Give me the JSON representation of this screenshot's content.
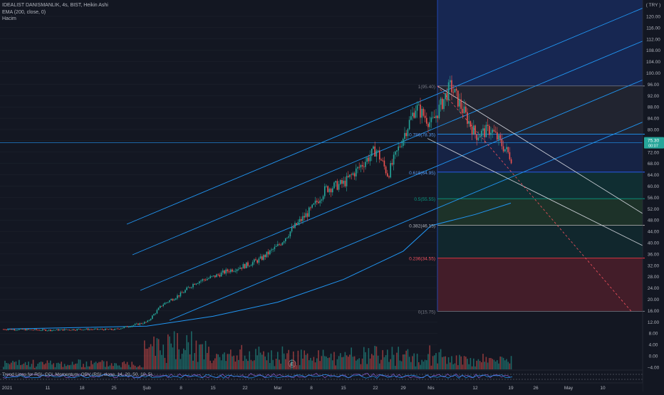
{
  "header": {
    "symbol_line": "IDEALIST DANISMANLIK, 4s, BIST, Heikin Ashi",
    "ema_line": "EMA (200, close, 0)",
    "volume_line": "Hacim",
    "currency": "( TRY )"
  },
  "oscillator": {
    "label": "Trend Lines for RSI, CCI, Momentum, OBV (RSI, close, 14, 20, 50, 10, 5)"
  },
  "price_badge": {
    "value": "75.30",
    "sub": "00:07"
  },
  "marker_e": "E",
  "fib_levels": [
    {
      "label": "1(95.40)",
      "value": 95.4
    },
    {
      "label": "0.786(78.35)",
      "value": 78.35
    },
    {
      "label": "0.618(64.95)",
      "value": 64.95
    },
    {
      "label": "0.5(55.55)",
      "value": 55.55
    },
    {
      "label": "0.382(46.15)",
      "value": 46.15
    },
    {
      "label": "0.236(34.55)",
      "value": 34.55
    },
    {
      "label": "0(15.75)",
      "value": 15.75
    }
  ],
  "colors": {
    "background": "#131722",
    "up": "#26a69a",
    "down": "#ef5350",
    "ema": "#2196f3",
    "channel": "#2196f3",
    "fib_red": "#f7525f",
    "fib_blue": "#5b9cf6"
  },
  "chart_data": {
    "type": "candlestick",
    "style": "Heikin Ashi",
    "y_axis": {
      "side": "right",
      "range": [
        -4,
        124
      ],
      "ticks": [
        "120.00",
        "116.00",
        "112.00",
        "108.00",
        "104.00",
        "100.00",
        "96.00",
        "92.00",
        "88.00",
        "84.00",
        "80.00",
        "76.00",
        "72.00",
        "68.00",
        "64.00",
        "60.00",
        "56.00",
        "52.00",
        "48.00",
        "44.00",
        "40.00",
        "36.00",
        "32.00",
        "28.00",
        "24.00",
        "20.00",
        "16.00",
        "12.00",
        "8.00",
        "4.00",
        "0.00",
        "−4.00"
      ]
    },
    "x_axis": {
      "ticks": [
        "2021",
        "11",
        "18",
        "25",
        "Şub",
        "8",
        "15",
        "22",
        "Mar",
        "8",
        "15",
        "22",
        "29",
        "Nis",
        "12",
        "19",
        "26",
        "May",
        "10"
      ]
    },
    "last_price": 75.3,
    "ema_200": [
      {
        "date": "2021-01-04",
        "value": 9.5
      },
      {
        "date": "2021-02-01",
        "value": 10.5
      },
      {
        "date": "2021-02-15",
        "value": 14
      },
      {
        "date": "2021-03-01",
        "value": 19
      },
      {
        "date": "2021-03-15",
        "value": 27
      },
      {
        "date": "2021-03-29",
        "value": 37
      },
      {
        "date": "2021-04-05",
        "value": 46
      },
      {
        "date": "2021-04-12",
        "value": 50
      },
      {
        "date": "2021-04-19",
        "value": 54
      }
    ],
    "candles_daily": [
      {
        "date": "2021-01-04",
        "o": 9.2,
        "c": 9.4
      },
      {
        "date": "2021-01-11",
        "o": 8.9,
        "c": 9.1
      },
      {
        "date": "2021-01-18",
        "o": 9.0,
        "c": 9.4
      },
      {
        "date": "2021-01-25",
        "o": 9.5,
        "c": 9.3
      },
      {
        "date": "2021-02-01",
        "o": 9.6,
        "c": 12
      },
      {
        "date": "2021-02-04",
        "o": 12,
        "c": 18
      },
      {
        "date": "2021-02-08",
        "o": 18,
        "c": 22
      },
      {
        "date": "2021-02-11",
        "o": 22,
        "c": 26
      },
      {
        "date": "2021-02-15",
        "o": 26,
        "c": 28
      },
      {
        "date": "2021-02-18",
        "o": 28,
        "c": 30
      },
      {
        "date": "2021-02-22",
        "o": 30,
        "c": 32
      },
      {
        "date": "2021-02-25",
        "o": 32,
        "c": 34
      },
      {
        "date": "2021-03-01",
        "o": 34,
        "c": 39
      },
      {
        "date": "2021-03-04",
        "o": 39,
        "c": 45
      },
      {
        "date": "2021-03-08",
        "o": 45,
        "c": 52
      },
      {
        "date": "2021-03-11",
        "o": 52,
        "c": 59
      },
      {
        "date": "2021-03-15",
        "o": 59,
        "c": 61
      },
      {
        "date": "2021-03-18",
        "o": 61,
        "c": 66
      },
      {
        "date": "2021-03-22",
        "o": 66,
        "c": 73
      },
      {
        "date": "2021-03-25",
        "o": 73,
        "c": 64
      },
      {
        "date": "2021-03-29",
        "o": 64,
        "c": 78
      },
      {
        "date": "2021-04-01",
        "o": 78,
        "c": 88
      },
      {
        "date": "2021-04-05",
        "o": 88,
        "c": 82
      },
      {
        "date": "2021-04-08",
        "o": 82,
        "c": 95.4
      },
      {
        "date": "2021-04-12",
        "o": 88,
        "c": 78
      },
      {
        "date": "2021-04-15",
        "o": 78,
        "c": 80
      },
      {
        "date": "2021-04-19",
        "o": 80,
        "c": 70
      },
      {
        "date": "2021-04-21",
        "o": 66,
        "c": 75.3
      }
    ]
  }
}
